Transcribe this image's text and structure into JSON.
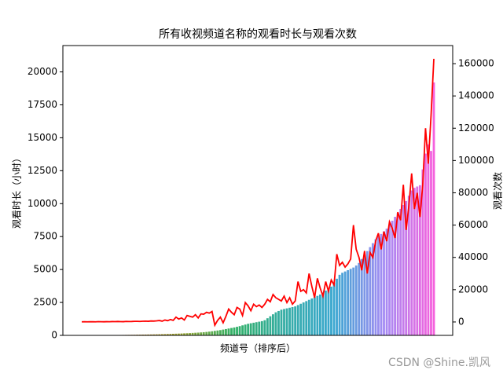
{
  "chart_data": {
    "type": "bar_line",
    "title": "所有收视频道名称的观看时长与观看次数",
    "xlabel": "频道号（排序后）",
    "ylabel": "观看时长（小时）",
    "y2label": "观看次数",
    "watermark": "CSDN @Shine.凯风",
    "categories": [
      null,
      null,
      null,
      null,
      null,
      null,
      null,
      null,
      null,
      null,
      null,
      null,
      null,
      null,
      null,
      null,
      null,
      null,
      null,
      null,
      null,
      null,
      null,
      null,
      null,
      null,
      null,
      null,
      null,
      null,
      null,
      null,
      null,
      null,
      null,
      null,
      null,
      null,
      null,
      null,
      null,
      null,
      null,
      null,
      null,
      null,
      null,
      null,
      null,
      null,
      null,
      null,
      null,
      null,
      null,
      null,
      null,
      null,
      null,
      null,
      null,
      null,
      null,
      null,
      null,
      null,
      null,
      null,
      null,
      null,
      null,
      null,
      null,
      null,
      null,
      null,
      null,
      null,
      null,
      null,
      null,
      null,
      null,
      null,
      null,
      null,
      null,
      null,
      null,
      null,
      null,
      null,
      null,
      null,
      null,
      null,
      null,
      null,
      null,
      null,
      null,
      null,
      null,
      null,
      null,
      null,
      null,
      null,
      null,
      null,
      null,
      null,
      null,
      null,
      null,
      null,
      null,
      null,
      null,
      null,
      null,
      null,
      null,
      null,
      null,
      null,
      null,
      null
    ],
    "series": [
      {
        "name": "观看时长",
        "palette": [
          "#f77189",
          "#ce9032",
          "#97a431",
          "#32b166",
          "#36ada4",
          "#39a7d0",
          "#a48cf4",
          "#f561dd"
        ],
        "values": [
          5,
          6,
          8,
          10,
          12,
          14,
          15,
          17,
          19,
          20,
          22,
          24,
          26,
          28,
          30,
          33,
          36,
          39,
          42,
          46,
          50,
          54,
          58,
          62,
          66,
          70,
          75,
          80,
          86,
          92,
          98,
          105,
          112,
          120,
          128,
          136,
          145,
          155,
          165,
          175,
          186,
          198,
          210,
          225,
          240,
          260,
          285,
          310,
          340,
          370,
          400,
          440,
          480,
          520,
          560,
          600,
          650,
          700,
          760,
          820,
          880,
          920,
          960,
          1000,
          1040,
          1080,
          1150,
          1300,
          1450,
          1600,
          1750,
          1850,
          1950,
          2000,
          2050,
          2100,
          2150,
          2200,
          2300,
          2400,
          2500,
          2600,
          2700,
          2800,
          2900,
          3000,
          3100,
          3250,
          3400,
          3550,
          3700,
          4000,
          4300,
          4600,
          4750,
          4850,
          4950,
          5050,
          5150,
          5300,
          5500,
          5800,
          6100,
          6400,
          6700,
          7000,
          7300,
          7500,
          7700,
          7900,
          8100,
          8400,
          8700,
          9000,
          9300,
          9600,
          9900,
          10200,
          10600,
          11000,
          11200,
          11300,
          11400,
          12600,
          13800,
          14500,
          14000,
          19200
        ]
      },
      {
        "name": "观看次数",
        "color": "#ff0000",
        "axis": "y2",
        "values": [
          100,
          120,
          80,
          150,
          130,
          90,
          200,
          160,
          110,
          180,
          140,
          250,
          200,
          300,
          220,
          180,
          350,
          260,
          300,
          400,
          380,
          320,
          450,
          500,
          420,
          600,
          550,
          700,
          900,
          500,
          1200,
          800,
          1500,
          1000,
          3000,
          1800,
          2500,
          1200,
          4000,
          3500,
          3000,
          4500,
          2500,
          5000,
          4800,
          6000,
          5500,
          6500,
          -2000,
          1000,
          3000,
          -500,
          3500,
          8000,
          6000,
          4500,
          9000,
          8000,
          4000,
          12000,
          10000,
          7000,
          11000,
          9500,
          10500,
          9000,
          11000,
          14000,
          12500,
          17000,
          15000,
          14000,
          13000,
          16000,
          12000,
          15000,
          11000,
          13000,
          25000,
          19000,
          20000,
          18000,
          30000,
          22000,
          15000,
          27000,
          21000,
          16000,
          25000,
          19000,
          26000,
          23000,
          42000,
          35000,
          37000,
          34000,
          36000,
          39000,
          60000,
          45000,
          40000,
          32000,
          44000,
          30000,
          43000,
          40000,
          50000,
          55000,
          45000,
          56000,
          50000,
          62000,
          58000,
          52000,
          68000,
          63000,
          85000,
          57000,
          72000,
          92000,
          70000,
          80000,
          65000,
          85000,
          120000,
          98000,
          128000,
          163000
        ]
      }
    ],
    "ylim": [
      0,
      22000
    ],
    "yticks": [
      0,
      2500,
      5000,
      7500,
      10000,
      12500,
      15000,
      17500,
      20000
    ],
    "y2lim": [
      -8300,
      171200
    ],
    "y2ticks": [
      0,
      20000,
      40000,
      60000,
      80000,
      100000,
      120000,
      140000,
      160000
    ]
  }
}
